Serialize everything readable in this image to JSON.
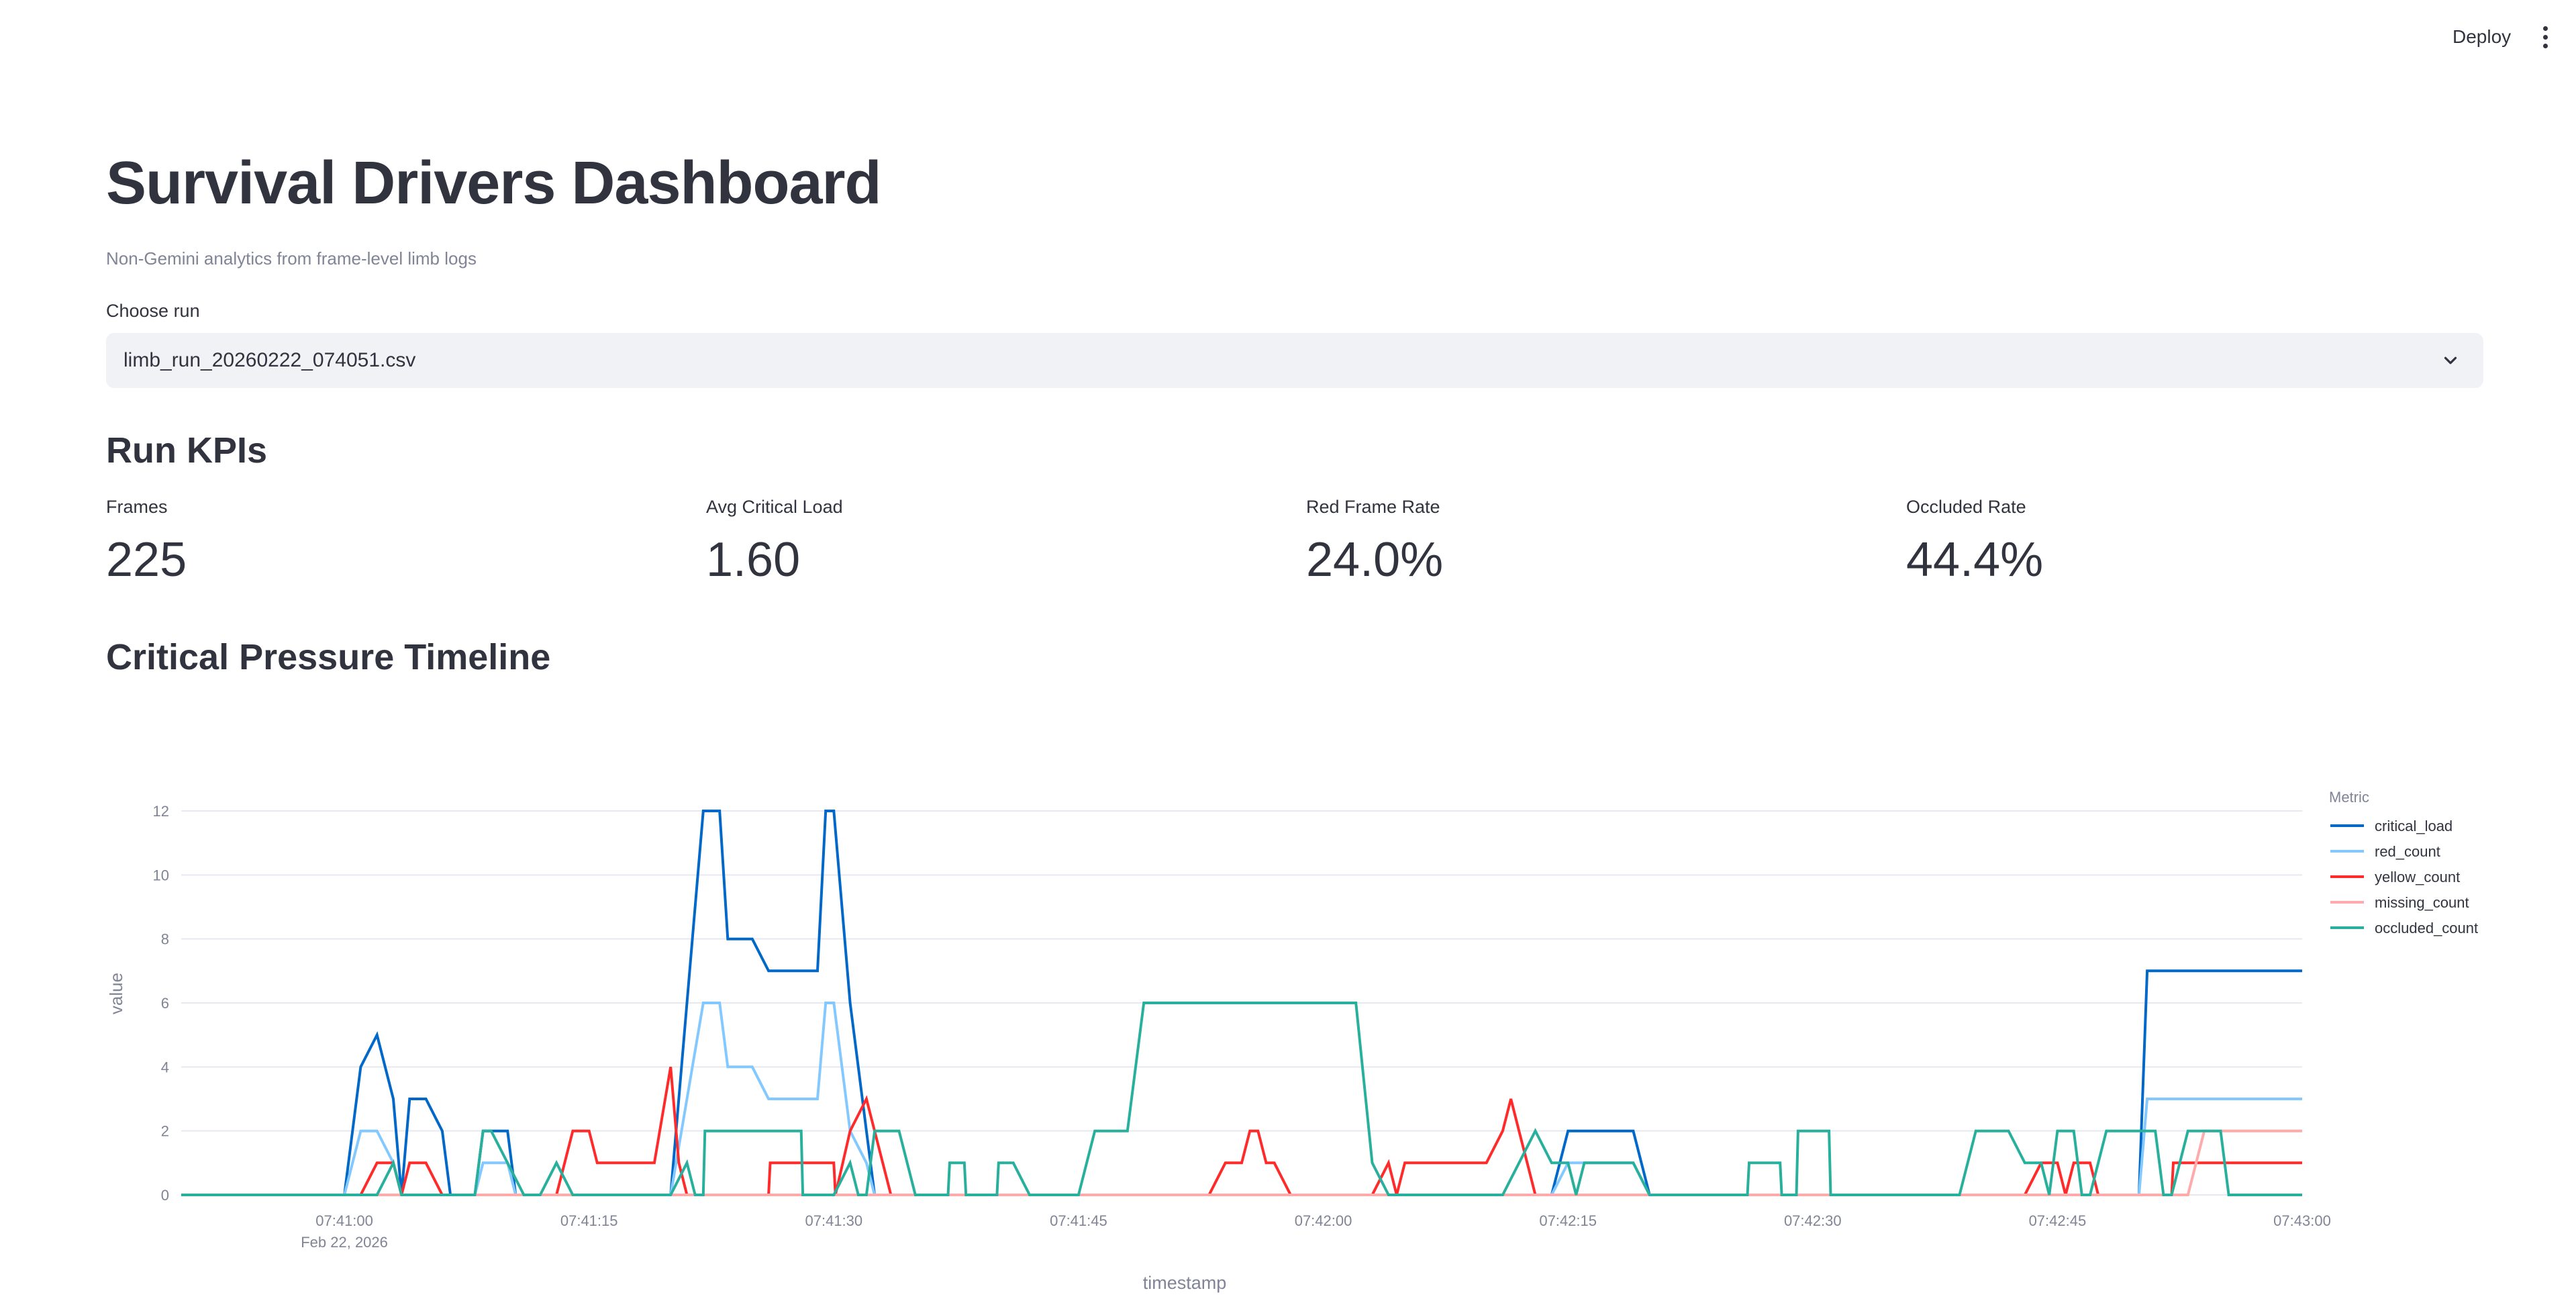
{
  "header": {
    "deploy_label": "Deploy",
    "menu_icon": "kebab-menu-icon"
  },
  "page": {
    "title": "Survival Drivers Dashboard",
    "subtitle": "Non-Gemini analytics from frame-level limb logs"
  },
  "run_select": {
    "label": "Choose run",
    "value": "limb_run_20260222_074051.csv",
    "icon": "chevron-down-icon"
  },
  "kpis": {
    "heading": "Run KPIs",
    "items": [
      {
        "label": "Frames",
        "value": "225"
      },
      {
        "label": "Avg Critical Load",
        "value": "1.60"
      },
      {
        "label": "Red Frame Rate",
        "value": "24.0%"
      },
      {
        "label": "Occluded Rate",
        "value": "44.4%"
      }
    ]
  },
  "timeline": {
    "heading": "Critical Pressure Timeline"
  },
  "chart_data": {
    "type": "line",
    "xlabel": "timestamp",
    "ylabel": "value",
    "legend_title": "Metric",
    "legend_position": "right",
    "grid": true,
    "xlim": [
      "07:40:50",
      "07:43:00"
    ],
    "ylim": [
      0,
      12
    ],
    "y_ticks": [
      0,
      2,
      4,
      6,
      8,
      10,
      12
    ],
    "x_ticks": [
      {
        "t": "07:41:00",
        "label": "07:41:00",
        "sublabel": "Feb 22, 2026"
      },
      {
        "t": "07:41:15",
        "label": "07:41:15"
      },
      {
        "t": "07:41:30",
        "label": "07:41:30"
      },
      {
        "t": "07:41:45",
        "label": "07:41:45"
      },
      {
        "t": "07:42:00",
        "label": "07:42:00"
      },
      {
        "t": "07:42:15",
        "label": "07:42:15"
      },
      {
        "t": "07:42:30",
        "label": "07:42:30"
      },
      {
        "t": "07:42:45",
        "label": "07:42:45"
      },
      {
        "t": "07:43:00",
        "label": "07:43:00"
      }
    ],
    "series": [
      {
        "name": "critical_load",
        "color": "#0068c9",
        "points": [
          [
            "07:40:50",
            0
          ],
          [
            "07:41:00",
            0
          ],
          [
            "07:41:01",
            4
          ],
          [
            "07:41:02",
            5
          ],
          [
            "07:41:03",
            3
          ],
          [
            "07:41:03.5",
            0
          ],
          [
            "07:41:04",
            3
          ],
          [
            "07:41:05",
            3
          ],
          [
            "07:41:06",
            2
          ],
          [
            "07:41:06.5",
            0
          ],
          [
            "07:41:08",
            0
          ],
          [
            "07:41:08.5",
            2
          ],
          [
            "07:41:10",
            2
          ],
          [
            "07:41:10.5",
            0
          ],
          [
            "07:41:20",
            0
          ],
          [
            "07:41:21",
            6
          ],
          [
            "07:41:22",
            12
          ],
          [
            "07:41:23",
            12
          ],
          [
            "07:41:23.5",
            8
          ],
          [
            "07:41:25",
            8
          ],
          [
            "07:41:26",
            7
          ],
          [
            "07:41:29",
            7
          ],
          [
            "07:41:29.5",
            12
          ],
          [
            "07:41:30",
            12
          ],
          [
            "07:41:31",
            6
          ],
          [
            "07:41:32",
            2
          ],
          [
            "07:41:32.5",
            0
          ],
          [
            "07:42:14",
            0
          ],
          [
            "07:42:15",
            2
          ],
          [
            "07:42:19",
            2
          ],
          [
            "07:42:20",
            0
          ],
          [
            "07:42:50",
            0
          ],
          [
            "07:42:50.5",
            7
          ],
          [
            "07:43:00",
            7
          ]
        ]
      },
      {
        "name": "red_count",
        "color": "#83c9ff",
        "points": [
          [
            "07:40:50",
            0
          ],
          [
            "07:41:00",
            0
          ],
          [
            "07:41:01",
            2
          ],
          [
            "07:41:02",
            2
          ],
          [
            "07:41:03",
            1
          ],
          [
            "07:41:03.5",
            0
          ],
          [
            "07:41:08",
            0
          ],
          [
            "07:41:08.5",
            1
          ],
          [
            "07:41:10",
            1
          ],
          [
            "07:41:10.5",
            0
          ],
          [
            "07:41:20",
            0
          ],
          [
            "07:41:21",
            3
          ],
          [
            "07:41:22",
            6
          ],
          [
            "07:41:23",
            6
          ],
          [
            "07:41:23.5",
            4
          ],
          [
            "07:41:25",
            4
          ],
          [
            "07:41:26",
            3
          ],
          [
            "07:41:29",
            3
          ],
          [
            "07:41:29.5",
            6
          ],
          [
            "07:41:30",
            6
          ],
          [
            "07:41:31",
            2
          ],
          [
            "07:41:32",
            1
          ],
          [
            "07:41:32.5",
            0
          ],
          [
            "07:42:14",
            0
          ],
          [
            "07:42:15",
            1
          ],
          [
            "07:42:19",
            1
          ],
          [
            "07:42:20",
            0
          ],
          [
            "07:42:50",
            0
          ],
          [
            "07:42:50.5",
            3
          ],
          [
            "07:43:00",
            3
          ]
        ]
      },
      {
        "name": "yellow_count",
        "color": "#ff2b2b",
        "points": [
          [
            "07:40:50",
            0
          ],
          [
            "07:41:01",
            0
          ],
          [
            "07:41:02",
            1
          ],
          [
            "07:41:03",
            1
          ],
          [
            "07:41:03.5",
            0
          ],
          [
            "07:41:04",
            1
          ],
          [
            "07:41:05",
            1
          ],
          [
            "07:41:06",
            0
          ],
          [
            "07:41:13",
            0
          ],
          [
            "07:41:14",
            2
          ],
          [
            "07:41:15",
            2
          ],
          [
            "07:41:15.5",
            1
          ],
          [
            "07:41:19",
            1
          ],
          [
            "07:41:20",
            4
          ],
          [
            "07:41:20.5",
            1
          ],
          [
            "07:41:21",
            0
          ],
          [
            "07:41:26",
            0
          ],
          [
            "07:41:26.1",
            1
          ],
          [
            "07:41:30",
            1
          ],
          [
            "07:41:30.1",
            0
          ],
          [
            "07:41:31",
            2
          ],
          [
            "07:41:32",
            3
          ],
          [
            "07:41:33",
            1
          ],
          [
            "07:41:33.5",
            0
          ],
          [
            "07:41:53",
            0
          ],
          [
            "07:41:54",
            1
          ],
          [
            "07:41:55",
            1
          ],
          [
            "07:41:55.5",
            2
          ],
          [
            "07:41:56",
            2
          ],
          [
            "07:41:56.5",
            1
          ],
          [
            "07:41:57",
            1
          ],
          [
            "07:41:58",
            0
          ],
          [
            "07:42:03",
            0
          ],
          [
            "07:42:04",
            1
          ],
          [
            "07:42:04.5",
            0
          ],
          [
            "07:42:05",
            1
          ],
          [
            "07:42:10",
            1
          ],
          [
            "07:42:11",
            2
          ],
          [
            "07:42:11.5",
            3
          ],
          [
            "07:42:12",
            2
          ],
          [
            "07:42:12.5",
            1
          ],
          [
            "07:42:13",
            0
          ],
          [
            "07:42:43",
            0
          ],
          [
            "07:42:44",
            1
          ],
          [
            "07:42:45",
            1
          ],
          [
            "07:42:45.5",
            0
          ],
          [
            "07:42:46",
            1
          ],
          [
            "07:42:47",
            1
          ],
          [
            "07:42:47.5",
            0
          ],
          [
            "07:42:52",
            0
          ],
          [
            "07:42:52.1",
            1
          ],
          [
            "07:43:00",
            1
          ]
        ]
      },
      {
        "name": "missing_count",
        "color": "#ffabab",
        "points": [
          [
            "07:40:50",
            0
          ],
          [
            "07:42:53",
            0
          ],
          [
            "07:42:54",
            2
          ],
          [
            "07:43:00",
            2
          ]
        ]
      },
      {
        "name": "occluded_count",
        "color": "#29b09d",
        "points": [
          [
            "07:40:50",
            0
          ],
          [
            "07:41:02",
            0
          ],
          [
            "07:41:03",
            1
          ],
          [
            "07:41:03.5",
            0
          ],
          [
            "07:41:08",
            0
          ],
          [
            "07:41:08.5",
            2
          ],
          [
            "07:41:09",
            2
          ],
          [
            "07:41:10",
            1
          ],
          [
            "07:41:11",
            0
          ],
          [
            "07:41:12",
            0
          ],
          [
            "07:41:13",
            1
          ],
          [
            "07:41:14",
            0
          ],
          [
            "07:41:20",
            0
          ],
          [
            "07:41:21",
            1
          ],
          [
            "07:41:21.5",
            0
          ],
          [
            "07:41:22",
            0
          ],
          [
            "07:41:22.1",
            2
          ],
          [
            "07:41:28",
            2
          ],
          [
            "07:41:28.1",
            0
          ],
          [
            "07:41:30",
            0
          ],
          [
            "07:41:31",
            1
          ],
          [
            "07:41:31.5",
            0
          ],
          [
            "07:41:32",
            0
          ],
          [
            "07:41:32.5",
            2
          ],
          [
            "07:41:34",
            2
          ],
          [
            "07:41:35",
            0
          ],
          [
            "07:41:37",
            0
          ],
          [
            "07:41:37.1",
            1
          ],
          [
            "07:41:38",
            1
          ],
          [
            "07:41:38.1",
            0
          ],
          [
            "07:41:40",
            0
          ],
          [
            "07:41:40.1",
            1
          ],
          [
            "07:41:41",
            1
          ],
          [
            "07:41:42",
            0
          ],
          [
            "07:41:45",
            0
          ],
          [
            "07:41:46",
            2
          ],
          [
            "07:41:48",
            2
          ],
          [
            "07:41:49",
            6
          ],
          [
            "07:42:02",
            6
          ],
          [
            "07:42:03",
            1
          ],
          [
            "07:42:04",
            0
          ],
          [
            "07:42:11",
            0
          ],
          [
            "07:42:13",
            2
          ],
          [
            "07:42:14",
            1
          ],
          [
            "07:42:15",
            1
          ],
          [
            "07:42:15.5",
            0
          ],
          [
            "07:42:16",
            1
          ],
          [
            "07:42:19",
            1
          ],
          [
            "07:42:20",
            0
          ],
          [
            "07:42:26",
            0
          ],
          [
            "07:42:26.1",
            1
          ],
          [
            "07:42:28",
            1
          ],
          [
            "07:42:28.1",
            0
          ],
          [
            "07:42:29",
            0
          ],
          [
            "07:42:29.1",
            2
          ],
          [
            "07:42:31",
            2
          ],
          [
            "07:42:31.1",
            0
          ],
          [
            "07:42:39",
            0
          ],
          [
            "07:42:40",
            2
          ],
          [
            "07:42:42",
            2
          ],
          [
            "07:42:43",
            1
          ],
          [
            "07:42:44",
            1
          ],
          [
            "07:42:44.5",
            0
          ],
          [
            "07:42:45",
            2
          ],
          [
            "07:42:46",
            2
          ],
          [
            "07:42:46.5",
            0
          ],
          [
            "07:42:47",
            0
          ],
          [
            "07:42:48",
            2
          ],
          [
            "07:42:51",
            2
          ],
          [
            "07:42:51.5",
            0
          ],
          [
            "07:42:52",
            0
          ],
          [
            "07:42:53",
            2
          ],
          [
            "07:42:55",
            2
          ],
          [
            "07:42:55.5",
            0
          ],
          [
            "07:43:00",
            0
          ]
        ]
      }
    ]
  }
}
